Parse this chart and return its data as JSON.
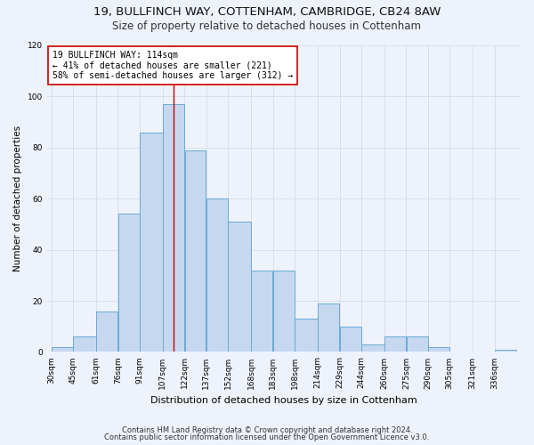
{
  "title1": "19, BULLFINCH WAY, COTTENHAM, CAMBRIDGE, CB24 8AW",
  "title2": "Size of property relative to detached houses in Cottenham",
  "xlabel": "Distribution of detached houses by size in Cottenham",
  "ylabel": "Number of detached properties",
  "categories": [
    "30sqm",
    "45sqm",
    "61sqm",
    "76sqm",
    "91sqm",
    "107sqm",
    "122sqm",
    "137sqm",
    "152sqm",
    "168sqm",
    "183sqm",
    "198sqm",
    "214sqm",
    "229sqm",
    "244sqm",
    "260sqm",
    "275sqm",
    "290sqm",
    "305sqm",
    "321sqm",
    "336sqm"
  ],
  "values": [
    2,
    6,
    16,
    54,
    86,
    97,
    79,
    60,
    51,
    32,
    32,
    13,
    19,
    10,
    3,
    6,
    6,
    2,
    0,
    0,
    1
  ],
  "bar_color": "#c5d8f0",
  "bar_edge_color": "#6aaad4",
  "bin_edges": [
    30,
    45,
    61,
    76,
    91,
    107,
    122,
    137,
    152,
    168,
    183,
    198,
    214,
    229,
    244,
    260,
    275,
    290,
    305,
    321,
    336,
    351
  ],
  "annotation_text": "19 BULLFINCH WAY: 114sqm\n← 41% of detached houses are smaller (221)\n58% of semi-detached houses are larger (312) →",
  "annotation_box_color": "#ffffff",
  "annotation_box_edge_color": "#cc0000",
  "vline_color": "#cc0000",
  "ylim": [
    0,
    120
  ],
  "yticks": [
    0,
    20,
    40,
    60,
    80,
    100,
    120
  ],
  "footnote1": "Contains HM Land Registry data © Crown copyright and database right 2024.",
  "footnote2": "Contains public sector information licensed under the Open Government Licence v3.0.",
  "bg_color": "#eef2fa",
  "grid_color": "#d0d8e8",
  "title1_fontsize": 9.5,
  "title2_fontsize": 8.5,
  "xlabel_fontsize": 8,
  "ylabel_fontsize": 7.5,
  "tick_fontsize": 6.5,
  "annot_fontsize": 7,
  "footnote_fontsize": 6
}
